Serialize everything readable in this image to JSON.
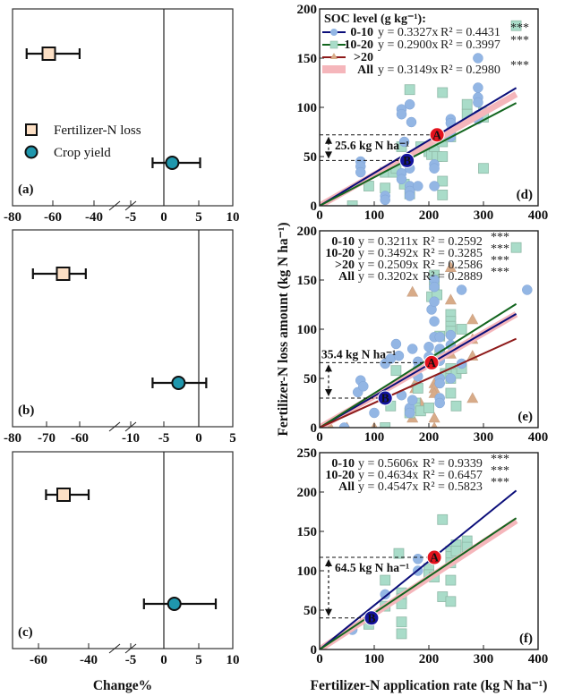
{
  "chart_data": [
    {
      "id": "a",
      "type": "forest",
      "panel_label": "(a)",
      "xlabel": "",
      "x_tick_labels": [
        "-80",
        "-60",
        "-40",
        "-5",
        "0",
        "5",
        "10"
      ],
      "axis_break": true,
      "legend": [
        {
          "name": "Fertilizer-N loss",
          "marker": "square"
        },
        {
          "name": "Crop yield",
          "marker": "circle"
        }
      ],
      "series": [
        {
          "name": "Fertilizer-N loss",
          "mean": -62,
          "ci": [
            -73,
            -47
          ]
        },
        {
          "name": "Crop yield",
          "mean": 1.2,
          "ci": [
            -1.7,
            5.2
          ]
        }
      ]
    },
    {
      "id": "b",
      "type": "forest",
      "panel_label": "(b)",
      "x_tick_labels": [
        "-80",
        "-70",
        "-60",
        "-10",
        "-5",
        "0",
        "5"
      ],
      "axis_break": true,
      "series": [
        {
          "name": "Fertilizer-N loss",
          "mean": -65,
          "ci": [
            -74,
            -54
          ]
        },
        {
          "name": "Crop yield",
          "mean": -2.9,
          "ci": [
            -6.7,
            1.1
          ]
        }
      ]
    },
    {
      "id": "c",
      "type": "forest",
      "panel_label": "(c)",
      "xlabel": "Change%",
      "x_tick_labels": [
        "-60",
        "-40",
        "-5",
        "0",
        "5",
        "10"
      ],
      "axis_break": true,
      "series": [
        {
          "name": "Fertilizer-N loss",
          "mean": -50,
          "ci": [
            -57,
            -40
          ]
        },
        {
          "name": "Crop yield",
          "mean": 1.5,
          "ci": [
            -3,
            7.5
          ]
        }
      ]
    },
    {
      "id": "d",
      "type": "scatter",
      "panel_label": "(d)",
      "xlim": [
        0,
        400
      ],
      "ylim": [
        0,
        200
      ],
      "x_ticks": [
        0,
        100,
        200,
        300,
        400
      ],
      "y_ticks": [
        0,
        50,
        100,
        150,
        200
      ],
      "legend_title": "SOC level (g kg⁻¹):",
      "legend": [
        {
          "name": "0-10",
          "eq": "y = 0.3327x",
          "r2": "R² = 0.4431",
          "sig": "***"
        },
        {
          "name": "10-20",
          "eq": "y = 0.2900x",
          "r2": "R² = 0.3997",
          "sig": "***"
        },
        {
          "name": ">20",
          "eq": "",
          "r2": "",
          "sig": ""
        },
        {
          "name": "All",
          "eq": "y = 0.3149x",
          "r2": "R² = 0.2980",
          "sig": "***"
        }
      ],
      "fits": [
        {
          "name": "0-10",
          "slope": 0.3327
        },
        {
          "name": "10-20",
          "slope": 0.29
        },
        {
          "name": "All",
          "slope": 0.3149
        }
      ],
      "annotation": {
        "text": "25.6 kg N ha⁻¹",
        "A": [
          215,
          72
        ],
        "B": [
          160,
          46
        ]
      },
      "points": {
        "0-10": [
          [
            75,
            45
          ],
          [
            75,
            40
          ],
          [
            75,
            34
          ],
          [
            150,
            98
          ],
          [
            150,
            93
          ],
          [
            155,
            65
          ],
          [
            165,
            103
          ],
          [
            168,
            85
          ],
          [
            150,
            33
          ],
          [
            150,
            27
          ],
          [
            165,
            38
          ],
          [
            165,
            20
          ],
          [
            165,
            15
          ],
          [
            165,
            10
          ],
          [
            120,
            10
          ],
          [
            120,
            6
          ],
          [
            180,
            20
          ],
          [
            210,
            20
          ],
          [
            210,
            42
          ],
          [
            210,
            38
          ],
          [
            240,
            88
          ],
          [
            240,
            84
          ],
          [
            240,
            76
          ],
          [
            240,
            70
          ],
          [
            290,
            150
          ],
          [
            290,
            120
          ],
          [
            290,
            110
          ],
          [
            290,
            105
          ],
          [
            290,
            92
          ],
          [
            290,
            88
          ]
        ],
        "10-20": [
          [
            60,
            0
          ],
          [
            90,
            20
          ],
          [
            120,
            18
          ],
          [
            120,
            34
          ],
          [
            135,
            34
          ],
          [
            140,
            38
          ],
          [
            150,
            60
          ],
          [
            155,
            22
          ],
          [
            165,
            12
          ],
          [
            185,
            60
          ],
          [
            200,
            55
          ],
          [
            205,
            52
          ],
          [
            210,
            60
          ],
          [
            215,
            50
          ],
          [
            225,
            50
          ],
          [
            225,
            25
          ],
          [
            225,
            11
          ],
          [
            225,
            65
          ],
          [
            240,
            70
          ],
          [
            270,
            103
          ],
          [
            270,
            93
          ],
          [
            300,
            95
          ],
          [
            300,
            90
          ],
          [
            165,
            118
          ],
          [
            225,
            115
          ],
          [
            300,
            38
          ],
          [
            360,
            183
          ]
        ]
      }
    },
    {
      "id": "e",
      "type": "scatter",
      "panel_label": "(e)",
      "xlim": [
        0,
        400
      ],
      "ylim": [
        0,
        200
      ],
      "x_ticks": [
        0,
        100,
        200,
        300,
        400
      ],
      "y_ticks": [
        0,
        50,
        100,
        150,
        200
      ],
      "legend": [
        {
          "name": "0-10",
          "eq": "y = 0.3211x",
          "r2": "R² = 0.2592",
          "sig": "***"
        },
        {
          "name": "10-20",
          "eq": "y = 0.3492x",
          "r2": "R² = 0.3285",
          "sig": "***"
        },
        {
          "name": ">20",
          "eq": "y = 0.2509x",
          "r2": "R² = 0.2586",
          "sig": "***"
        },
        {
          "name": "All",
          "eq": "y = 0.3202x",
          "r2": "R² = 0.2889",
          "sig": "***"
        }
      ],
      "fits": [
        {
          "name": "0-10",
          "slope": 0.3211
        },
        {
          "name": "10-20",
          "slope": 0.3492
        },
        {
          "name": ">20",
          "slope": 0.2509
        },
        {
          "name": "All",
          "slope": 0.3202
        }
      ],
      "annotation": {
        "text": "35.4 kg N ha⁻¹",
        "A": [
          205,
          66
        ],
        "B": [
          120,
          30
        ]
      },
      "points": {
        "0-10": [
          [
            45,
            0
          ],
          [
            70,
            36
          ],
          [
            75,
            48
          ],
          [
            80,
            42
          ],
          [
            100,
            15
          ],
          [
            120,
            65
          ],
          [
            130,
            70
          ],
          [
            140,
            85
          ],
          [
            145,
            73
          ],
          [
            150,
            33
          ],
          [
            165,
            20
          ],
          [
            165,
            15
          ],
          [
            170,
            80
          ],
          [
            170,
            28
          ],
          [
            180,
            67
          ],
          [
            180,
            60
          ],
          [
            180,
            52
          ],
          [
            200,
            82
          ],
          [
            200,
            72
          ],
          [
            205,
            67
          ],
          [
            205,
            120
          ],
          [
            210,
            150
          ],
          [
            210,
            143
          ],
          [
            210,
            128
          ],
          [
            210,
            108
          ],
          [
            210,
            92
          ],
          [
            220,
            92
          ],
          [
            220,
            80
          ],
          [
            220,
            68
          ],
          [
            220,
            50
          ],
          [
            220,
            45
          ],
          [
            220,
            30
          ],
          [
            220,
            25
          ],
          [
            240,
            94
          ],
          [
            240,
            84
          ],
          [
            240,
            50
          ],
          [
            260,
            65
          ],
          [
            260,
            140
          ],
          [
            380,
            140
          ]
        ],
        "10-20": [
          [
            120,
            0
          ],
          [
            130,
            22
          ],
          [
            140,
            58
          ],
          [
            165,
            15
          ],
          [
            175,
            25
          ],
          [
            175,
            20
          ],
          [
            180,
            40
          ],
          [
            185,
            17
          ],
          [
            200,
            20
          ],
          [
            210,
            155
          ],
          [
            210,
            150
          ],
          [
            210,
            145
          ],
          [
            205,
            133
          ],
          [
            215,
            135
          ],
          [
            220,
            93
          ],
          [
            220,
            75
          ],
          [
            230,
            55
          ],
          [
            240,
            115
          ],
          [
            240,
            108
          ],
          [
            240,
            103
          ],
          [
            240,
            98
          ],
          [
            240,
            60
          ],
          [
            240,
            50
          ],
          [
            240,
            35
          ],
          [
            250,
            22
          ],
          [
            250,
            55
          ],
          [
            260,
            100
          ],
          [
            260,
            60
          ],
          [
            360,
            183
          ]
        ],
        ">20": [
          [
            20,
            0
          ],
          [
            50,
            0
          ],
          [
            100,
            0
          ],
          [
            170,
            10
          ],
          [
            175,
            45
          ],
          [
            175,
            40
          ],
          [
            185,
            25
          ],
          [
            210,
            0
          ],
          [
            210,
            10
          ],
          [
            210,
            45
          ],
          [
            210,
            40
          ],
          [
            210,
            35
          ],
          [
            240,
            130
          ],
          [
            240,
            75
          ],
          [
            260,
            60
          ],
          [
            280,
            110
          ],
          [
            280,
            90
          ],
          [
            280,
            73
          ],
          [
            280,
            30
          ],
          [
            170,
            138
          ],
          [
            240,
            163
          ]
        ]
      }
    },
    {
      "id": "f",
      "type": "scatter",
      "panel_label": "(f)",
      "xlabel": "Fertilizer-N application rate (kg N ha⁻¹)",
      "xlim": [
        0,
        400
      ],
      "ylim": [
        0,
        250
      ],
      "x_ticks": [
        0,
        100,
        200,
        300,
        400
      ],
      "y_ticks": [
        0,
        50,
        100,
        150,
        200,
        250
      ],
      "legend": [
        {
          "name": "0-10",
          "eq": "y = 0.5606x",
          "r2": "R² = 0.9339",
          "sig": "***"
        },
        {
          "name": "10-20",
          "eq": "y = 0.4634x",
          "r2": "R² = 0.6457",
          "sig": "***"
        },
        {
          "name": "All",
          "eq": "y = 0.4547x",
          "r2": "R² = 0.5823",
          "sig": "***"
        }
      ],
      "fits": [
        {
          "name": "0-10",
          "slope": 0.5606
        },
        {
          "name": "10-20",
          "slope": 0.4634
        },
        {
          "name": "All",
          "slope": 0.4547
        }
      ],
      "annotation": {
        "text": "64.5 kg N ha⁻¹",
        "A": [
          210,
          117
        ],
        "B": [
          95,
          40
        ]
      },
      "points": {
        "0-10": [
          [
            60,
            25
          ],
          [
            120,
            70
          ],
          [
            180,
            115
          ],
          [
            180,
            100
          ]
        ],
        "10-20": [
          [
            90,
            32
          ],
          [
            120,
            88
          ],
          [
            120,
            55
          ],
          [
            145,
            122
          ],
          [
            150,
            72
          ],
          [
            150,
            65
          ],
          [
            150,
            58
          ],
          [
            150,
            35
          ],
          [
            150,
            20
          ],
          [
            200,
            103
          ],
          [
            200,
            95
          ],
          [
            210,
            92
          ],
          [
            225,
            67
          ],
          [
            225,
            165
          ],
          [
            240,
            125
          ],
          [
            240,
            118
          ],
          [
            240,
            110
          ],
          [
            240,
            88
          ],
          [
            240,
            61
          ],
          [
            250,
            133
          ],
          [
            250,
            125
          ],
          [
            270,
            138
          ],
          [
            270,
            130
          ]
        ]
      }
    }
  ],
  "shared": {
    "ylabel": "Fertilizer-N loss amount (kg N ha⁻¹)",
    "marker_labels": {
      "A": "A",
      "B": "B"
    }
  },
  "colors": {
    "loss_fill": "#fde0c5",
    "yield_fill": "#1f97ad",
    "soc_0_10_line": "#0b0e7a",
    "soc_0_10_point": "#93b6e4",
    "soc_10_20_line": "#12651e",
    "soc_10_20_point": "#a9dcc9",
    "soc_gt20_line": "#8e1a1a",
    "soc_gt20_point": "#d8ab88",
    "all_band": "#f5b6bb",
    "marker_A": "#e3131e",
    "marker_B": "#13139e"
  }
}
